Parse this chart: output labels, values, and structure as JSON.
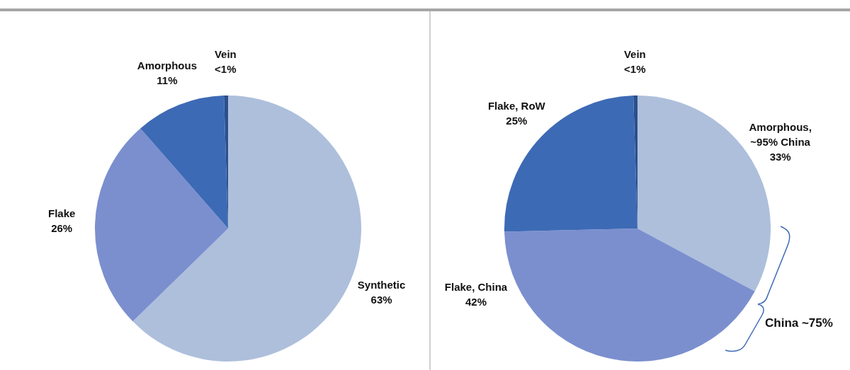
{
  "chart_data": [
    {
      "type": "pie",
      "categories": [
        "Synthetic",
        "Flake",
        "Amorphous",
        "Vein"
      ],
      "values": [
        63,
        26,
        11,
        0.5
      ],
      "value_labels": [
        "63%",
        "26%",
        "11%",
        "<1%"
      ],
      "colors": [
        "#adbfdb",
        "#7b8fcf",
        "#3d6ab5",
        "#2b4f8e"
      ]
    },
    {
      "type": "pie",
      "categories": [
        "Amorphous, ~95% China",
        "Flake, China",
        "Flake, RoW",
        "Vein"
      ],
      "values": [
        33,
        42,
        25,
        0.5
      ],
      "value_labels": [
        "33%",
        "42%",
        "25%",
        "<1%"
      ],
      "colors": [
        "#adbfdb",
        "#7b8fcf",
        "#3d6ab5",
        "#2b4f8e"
      ],
      "annotations": [
        "China ~75%"
      ]
    }
  ]
}
